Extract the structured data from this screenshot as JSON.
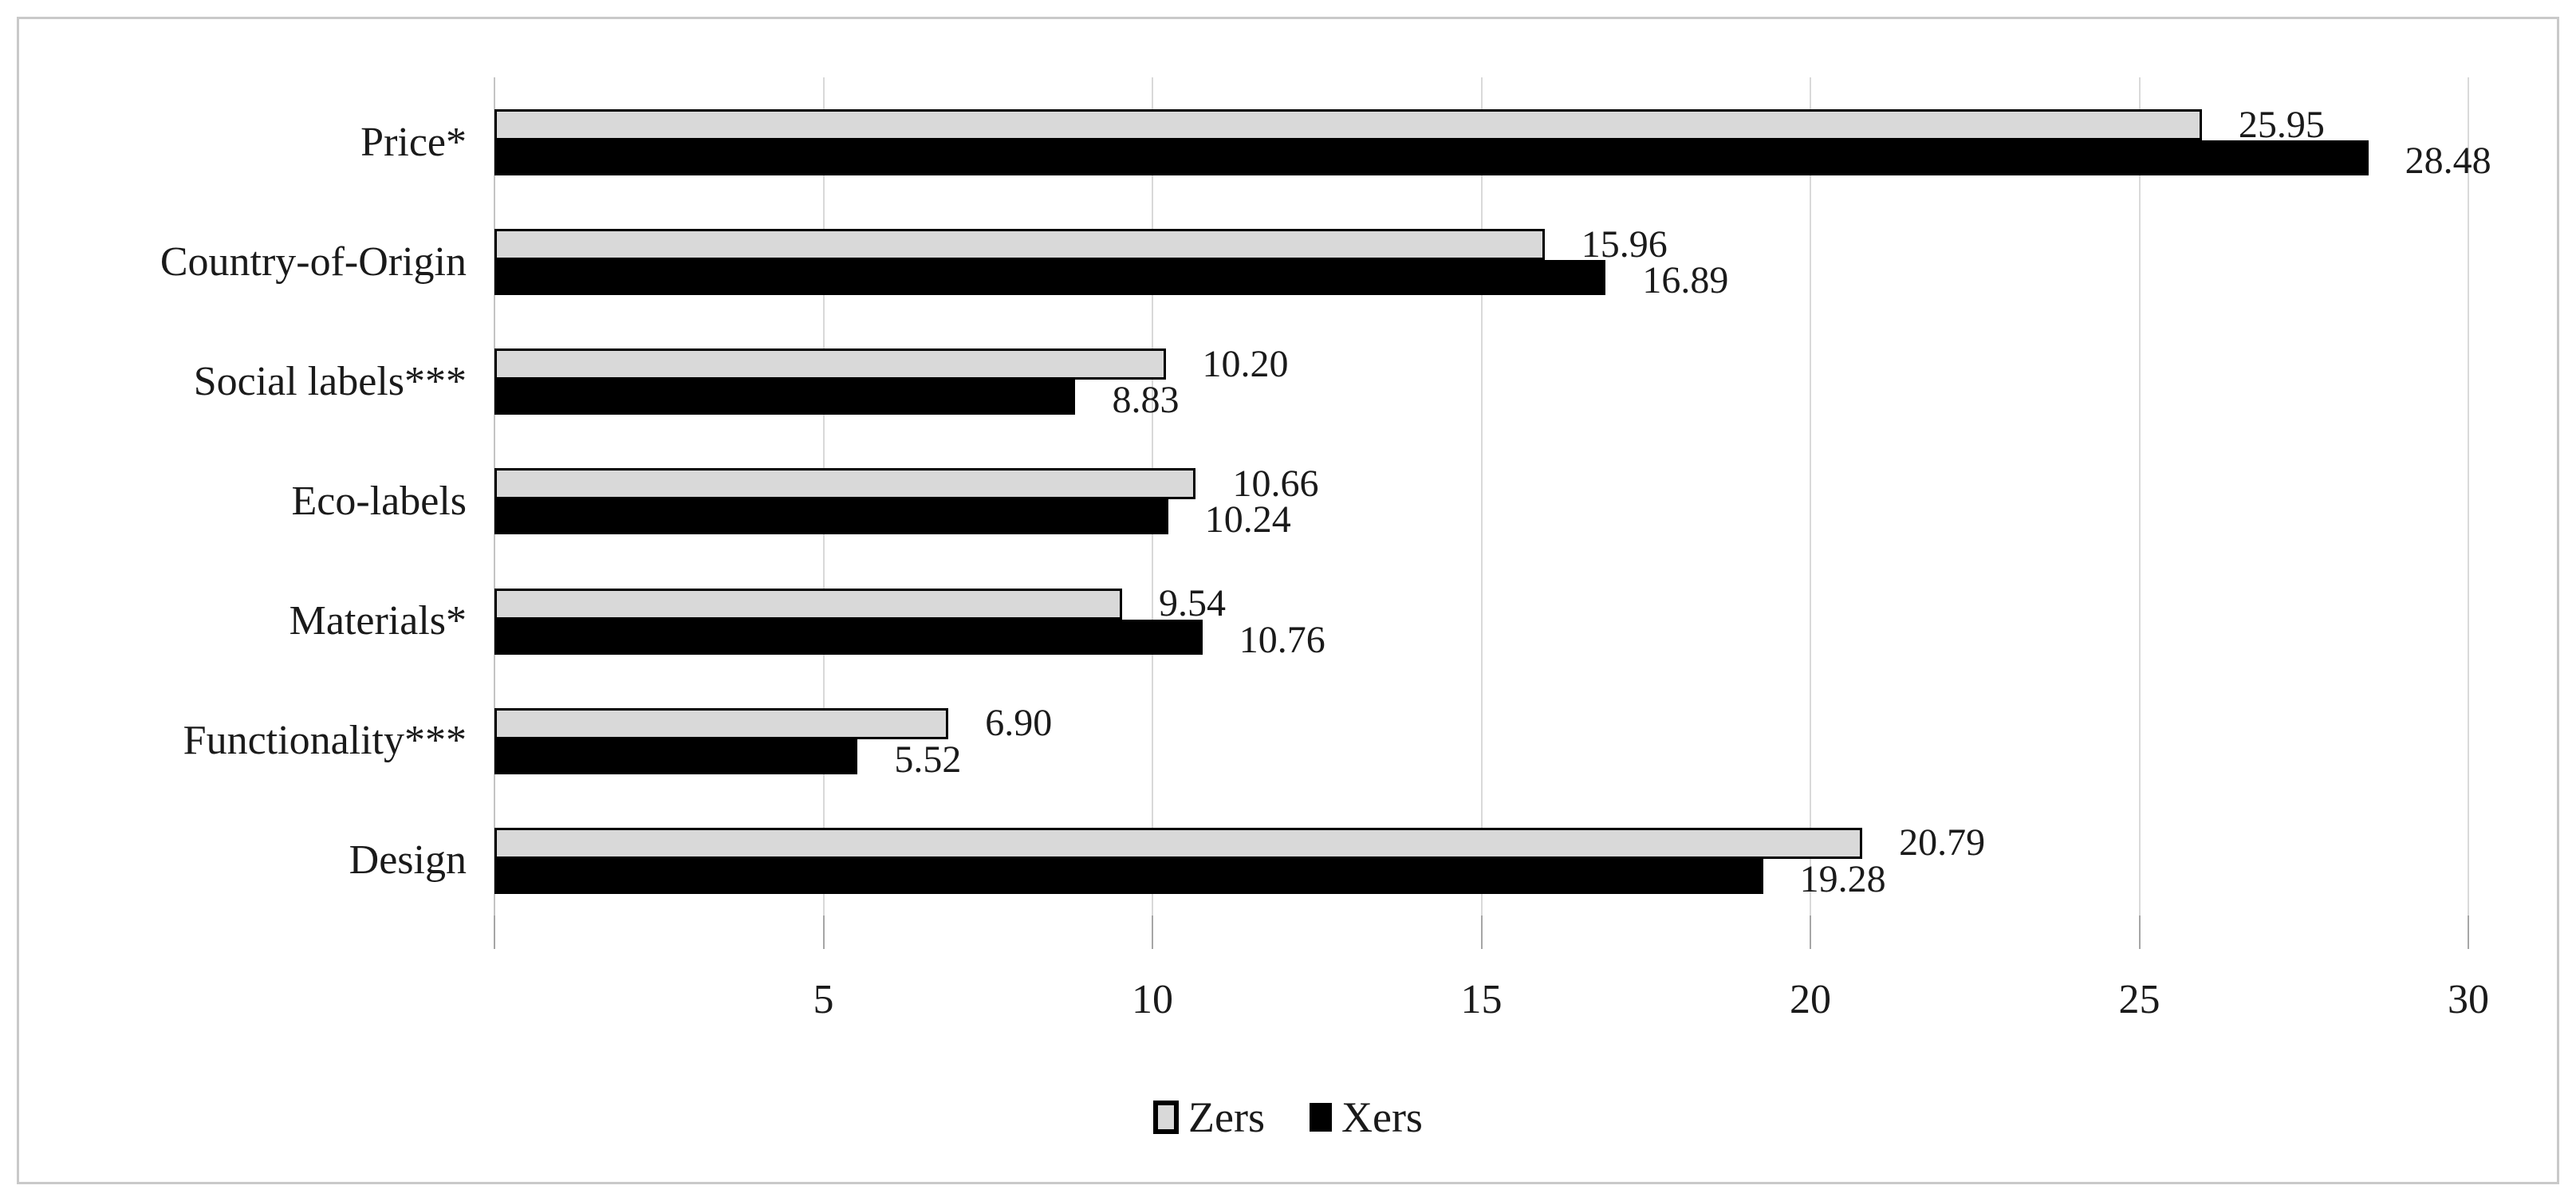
{
  "chart_data": {
    "type": "bar",
    "orientation": "horizontal",
    "title": "",
    "xlabel": "",
    "ylabel": "",
    "categories": [
      "Price*",
      "Country-of-Origin",
      "Social labels***",
      "Eco-labels",
      "Materials*",
      "Functionality***",
      "Design"
    ],
    "series": [
      {
        "name": "Zers",
        "color": "#d9d9d9",
        "border_color": "#000000",
        "values": [
          25.95,
          15.96,
          10.2,
          10.66,
          9.54,
          6.9,
          20.79
        ],
        "value_labels": [
          "25.95",
          "15.96",
          "10.20",
          "10.66",
          "9.54",
          "6.90",
          "20.79"
        ]
      },
      {
        "name": "Xers",
        "color": "#000000",
        "border_color": "#000000",
        "values": [
          28.48,
          16.89,
          8.83,
          10.24,
          10.76,
          5.52,
          19.28
        ],
        "value_labels": [
          "28.48",
          "16.89",
          "8.83",
          "10.24",
          "10.76",
          "5.52",
          "19.28"
        ]
      }
    ],
    "xlim": [
      0,
      30
    ],
    "x_ticks": [
      5,
      10,
      15,
      20,
      25,
      30
    ],
    "grid": "vertical",
    "legend_position": "bottom",
    "legend_items": [
      "Zers",
      "Xers"
    ]
  },
  "style": {
    "gridline_color": "#d9d9d9",
    "axis_line_color": "#c4c4c4",
    "tick_color": "#a6a6a6",
    "frame_border_color": "#c9c9c9",
    "text_color": "#1a1a1a",
    "background": "#ffffff"
  }
}
